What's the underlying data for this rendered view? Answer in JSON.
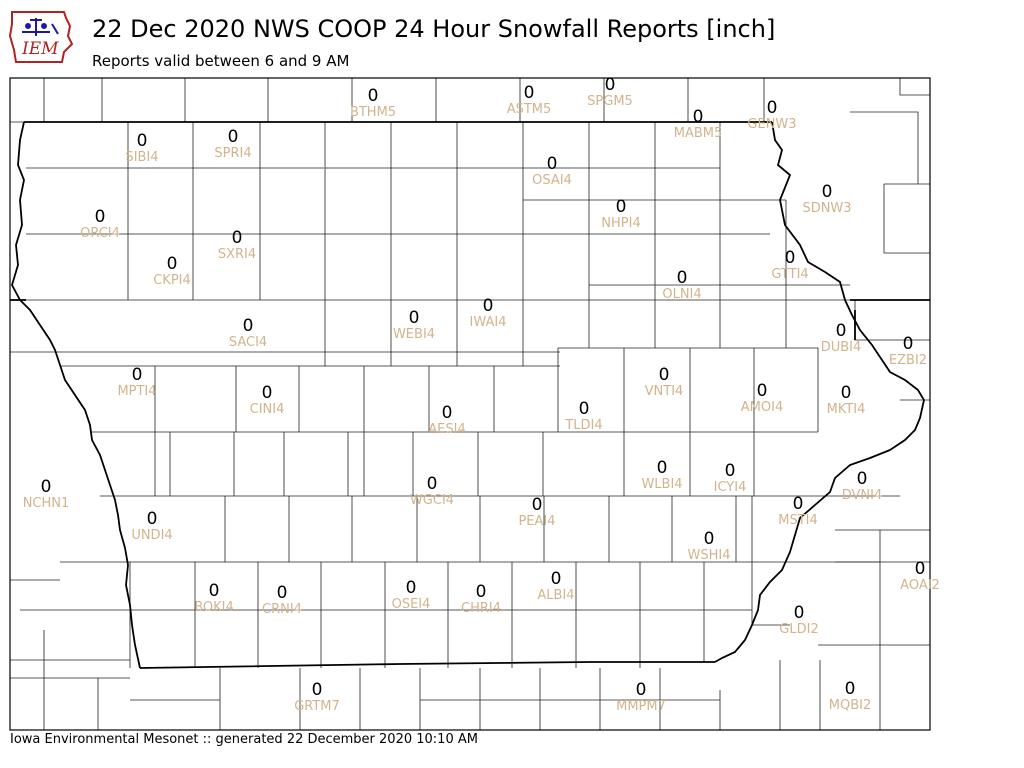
{
  "header": {
    "title": "22 Dec 2020 NWS COOP 24 Hour Snowfall Reports [inch]",
    "subtitle": "Reports valid between 6 and 9 AM",
    "logo_text": "IEM"
  },
  "footer": "Iowa Environmental Mesonet :: generated 22 December 2020 10:10 AM",
  "colors": {
    "station_label": "#d2b48c",
    "value": "#000000",
    "logo_red": "#b22222",
    "logo_blue": "#1a1aa6"
  },
  "stations": [
    {
      "id": "BTHM5",
      "value": "0"
    },
    {
      "id": "ASTM5",
      "value": "0"
    },
    {
      "id": "SPGM5",
      "value": "0"
    },
    {
      "id": "MABM5",
      "value": "0"
    },
    {
      "id": "GENW3",
      "value": "0"
    },
    {
      "id": "SIBI4",
      "value": "0"
    },
    {
      "id": "SPRI4",
      "value": "0"
    },
    {
      "id": "OSAI4",
      "value": "0"
    },
    {
      "id": "NHPI4",
      "value": "0"
    },
    {
      "id": "SDNW3",
      "value": "0"
    },
    {
      "id": "ORCI4",
      "value": "0"
    },
    {
      "id": "SXRI4",
      "value": "0"
    },
    {
      "id": "CKPI4",
      "value": "0"
    },
    {
      "id": "GTTI4",
      "value": "0"
    },
    {
      "id": "OLNI4",
      "value": "0"
    },
    {
      "id": "IWAI4",
      "value": "0"
    },
    {
      "id": "WEBI4",
      "value": "0"
    },
    {
      "id": "SACI4",
      "value": "0"
    },
    {
      "id": "DUBI4",
      "value": "0"
    },
    {
      "id": "EZBI2",
      "value": "0"
    },
    {
      "id": "MPTI4",
      "value": "0"
    },
    {
      "id": "VNTI4",
      "value": "0"
    },
    {
      "id": "CINI4",
      "value": "0"
    },
    {
      "id": "AMOI4",
      "value": "0"
    },
    {
      "id": "MKTI4",
      "value": "0"
    },
    {
      "id": "AESI4",
      "value": "0"
    },
    {
      "id": "TLDI4",
      "value": "0"
    },
    {
      "id": "WLBI4",
      "value": "0"
    },
    {
      "id": "ICYI4",
      "value": "0"
    },
    {
      "id": "DVNI4",
      "value": "0"
    },
    {
      "id": "NCHN1",
      "value": "0"
    },
    {
      "id": "WGCI4",
      "value": "0"
    },
    {
      "id": "PEAI4",
      "value": "0"
    },
    {
      "id": "MSTI4",
      "value": "0"
    },
    {
      "id": "UNDI4",
      "value": "0"
    },
    {
      "id": "WSHI4",
      "value": "0"
    },
    {
      "id": "AOAI2",
      "value": "0"
    },
    {
      "id": "BOKI4",
      "value": "0"
    },
    {
      "id": "CRNI4",
      "value": "0"
    },
    {
      "id": "OSEI4",
      "value": "0"
    },
    {
      "id": "CHRI4",
      "value": "0"
    },
    {
      "id": "ALBI4",
      "value": "0"
    },
    {
      "id": "GLDI2",
      "value": "0"
    },
    {
      "id": "GRTM7",
      "value": "0"
    },
    {
      "id": "MMPM7",
      "value": "0"
    },
    {
      "id": "MQBI2",
      "value": "0"
    }
  ]
}
